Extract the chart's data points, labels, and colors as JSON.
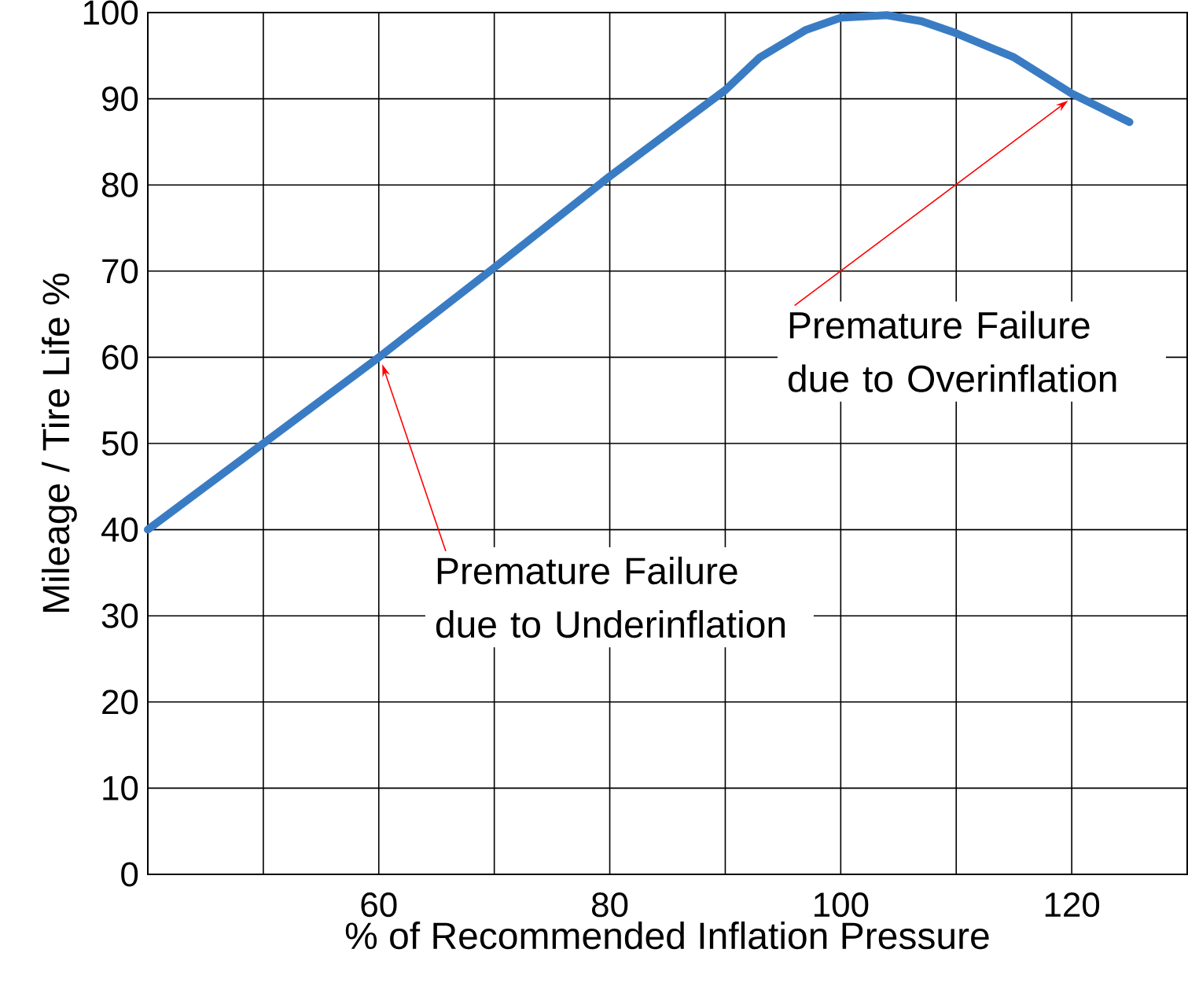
{
  "chart_data": {
    "type": "line",
    "xlabel": "% of Recommended Inflation Pressure",
    "ylabel": "Mileage / Tire Life %",
    "x": [
      40,
      50,
      60,
      70,
      80,
      90,
      93,
      97,
      100,
      104,
      107,
      110,
      115,
      120,
      125
    ],
    "series": [
      {
        "color": "#3a7cc4",
        "values": [
          40,
          50,
          60,
          70.4,
          81,
          91,
          94.8,
          98,
          99.4,
          99.7,
          99,
          97.6,
          94.8,
          90.6,
          87.3
        ]
      }
    ],
    "xlim": [
      40,
      130
    ],
    "ylim": [
      0,
      100
    ],
    "xticks": [
      {
        "value": 50,
        "label": null
      },
      60,
      {
        "value": 70,
        "label": null
      },
      80,
      {
        "value": 90,
        "label": null
      },
      100,
      {
        "value": 110,
        "label": null
      },
      120
    ],
    "yticks": [
      0,
      10,
      20,
      30,
      40,
      50,
      60,
      70,
      80,
      90,
      100
    ],
    "grid": true,
    "marker": "none",
    "line_style": "solid",
    "annotations": [
      "Premature Failure due to Underinflation",
      "Premature Failure due to Overinflation"
    ]
  }
}
